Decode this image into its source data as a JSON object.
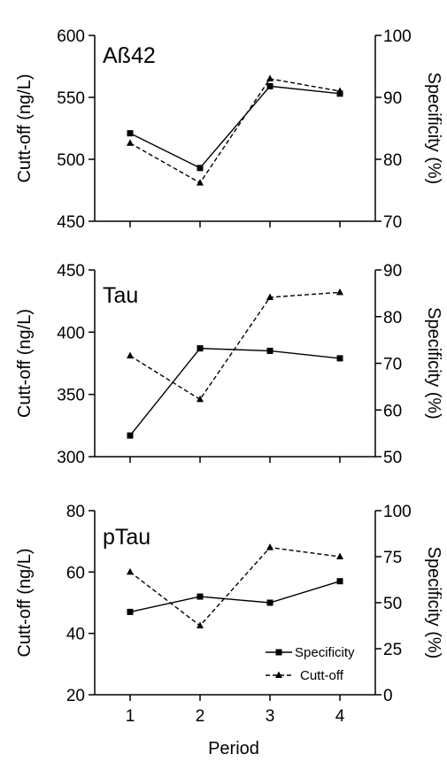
{
  "chart_data": {
    "type": "line",
    "x": [
      1,
      2,
      3,
      4
    ],
    "xlabel": "Period",
    "xticks": [
      "1",
      "2",
      "3",
      "4"
    ],
    "legend": {
      "placement": "bottom-right of third panel",
      "entries": [
        {
          "label": "Specificity",
          "style": "solid line, square markers"
        },
        {
          "label": "Cutt-off",
          "style": "dashed line, triangle markers"
        }
      ]
    },
    "panels": [
      {
        "title": "Aß42",
        "ylabel_left": "Cutt-off (ng/L)",
        "ylabel_right": "Specificity (%)",
        "ylim_left": [
          450,
          600
        ],
        "ylim_right": [
          70,
          100
        ],
        "yticks_left": [
          "450",
          "500",
          "550",
          "600"
        ],
        "yticks_right": [
          "70",
          "80",
          "90",
          "100"
        ],
        "series": [
          {
            "name": "Specificity",
            "axis": "left",
            "values": [
              521,
              493,
              559,
              553
            ]
          },
          {
            "name": "Cutt-off",
            "axis": "left",
            "values": [
              513,
              481,
              565,
              555
            ]
          }
        ]
      },
      {
        "title": "Tau",
        "ylabel_left": "Cutt-off (ng/L)",
        "ylabel_right": "Specificity (%)",
        "ylim_left": [
          300,
          450
        ],
        "ylim_right": [
          50,
          90
        ],
        "yticks_left": [
          "300",
          "350",
          "400",
          "450"
        ],
        "yticks_right": [
          "50",
          "60",
          "70",
          "80",
          "90"
        ],
        "series": [
          {
            "name": "Specificity",
            "axis": "left",
            "values": [
              317,
              387,
              385,
              379
            ]
          },
          {
            "name": "Cutt-off",
            "axis": "left",
            "values": [
              381,
              346,
              428,
              432
            ]
          }
        ]
      },
      {
        "title": "pTau",
        "ylabel_left": "Cutt-off (ng/L)",
        "ylabel_right": "Specificity (%)",
        "ylim_left": [
          20,
          80
        ],
        "ylim_right": [
          0,
          100
        ],
        "yticks_left": [
          "20",
          "40",
          "60",
          "80"
        ],
        "yticks_right": [
          "0",
          "25",
          "50",
          "75",
          "100"
        ],
        "series": [
          {
            "name": "Specificity",
            "axis": "left",
            "values": [
              47,
              52,
              50,
              57
            ]
          },
          {
            "name": "Cutt-off",
            "axis": "left",
            "values": [
              60,
              42.5,
              68,
              65
            ]
          }
        ]
      }
    ]
  }
}
